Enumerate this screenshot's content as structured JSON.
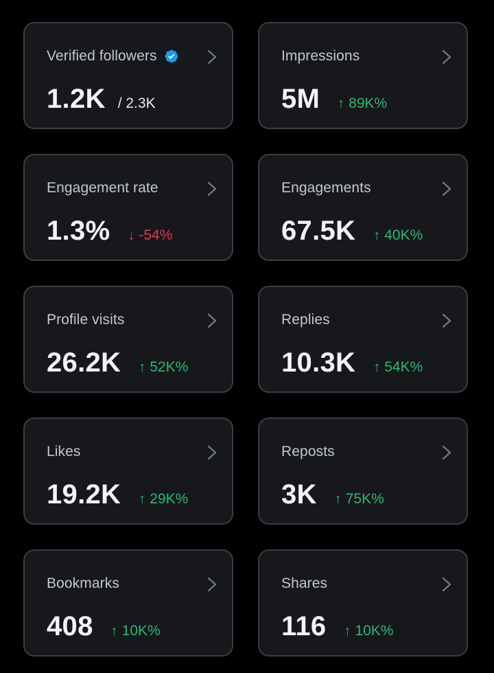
{
  "colors": {
    "up": "#2fb672",
    "down": "#e0394c",
    "verified": "#1d9bf0"
  },
  "cards": [
    {
      "label": "Verified followers",
      "value": "1.2K",
      "total": "/ 2.3K",
      "verified_icon": "verified-badge-icon"
    },
    {
      "label": "Impressions",
      "value": "5M",
      "delta": "89K%",
      "direction": "up"
    },
    {
      "label": "Engagement rate",
      "value": "1.3%",
      "delta": "-54%",
      "direction": "down"
    },
    {
      "label": "Engagements",
      "value": "67.5K",
      "delta": "40K%",
      "direction": "up"
    },
    {
      "label": "Profile visits",
      "value": "26.2K",
      "delta": "52K%",
      "direction": "up"
    },
    {
      "label": "Replies",
      "value": "10.3K",
      "delta": "54K%",
      "direction": "up"
    },
    {
      "label": "Likes",
      "value": "19.2K",
      "delta": "29K%",
      "direction": "up"
    },
    {
      "label": "Reposts",
      "value": "3K",
      "delta": "75K%",
      "direction": "up"
    },
    {
      "label": "Bookmarks",
      "value": "408",
      "delta": "10K%",
      "direction": "up"
    },
    {
      "label": "Shares",
      "value": "116",
      "delta": "10K%",
      "direction": "up"
    }
  ],
  "arrows": {
    "up": "↑",
    "down": "↓"
  }
}
